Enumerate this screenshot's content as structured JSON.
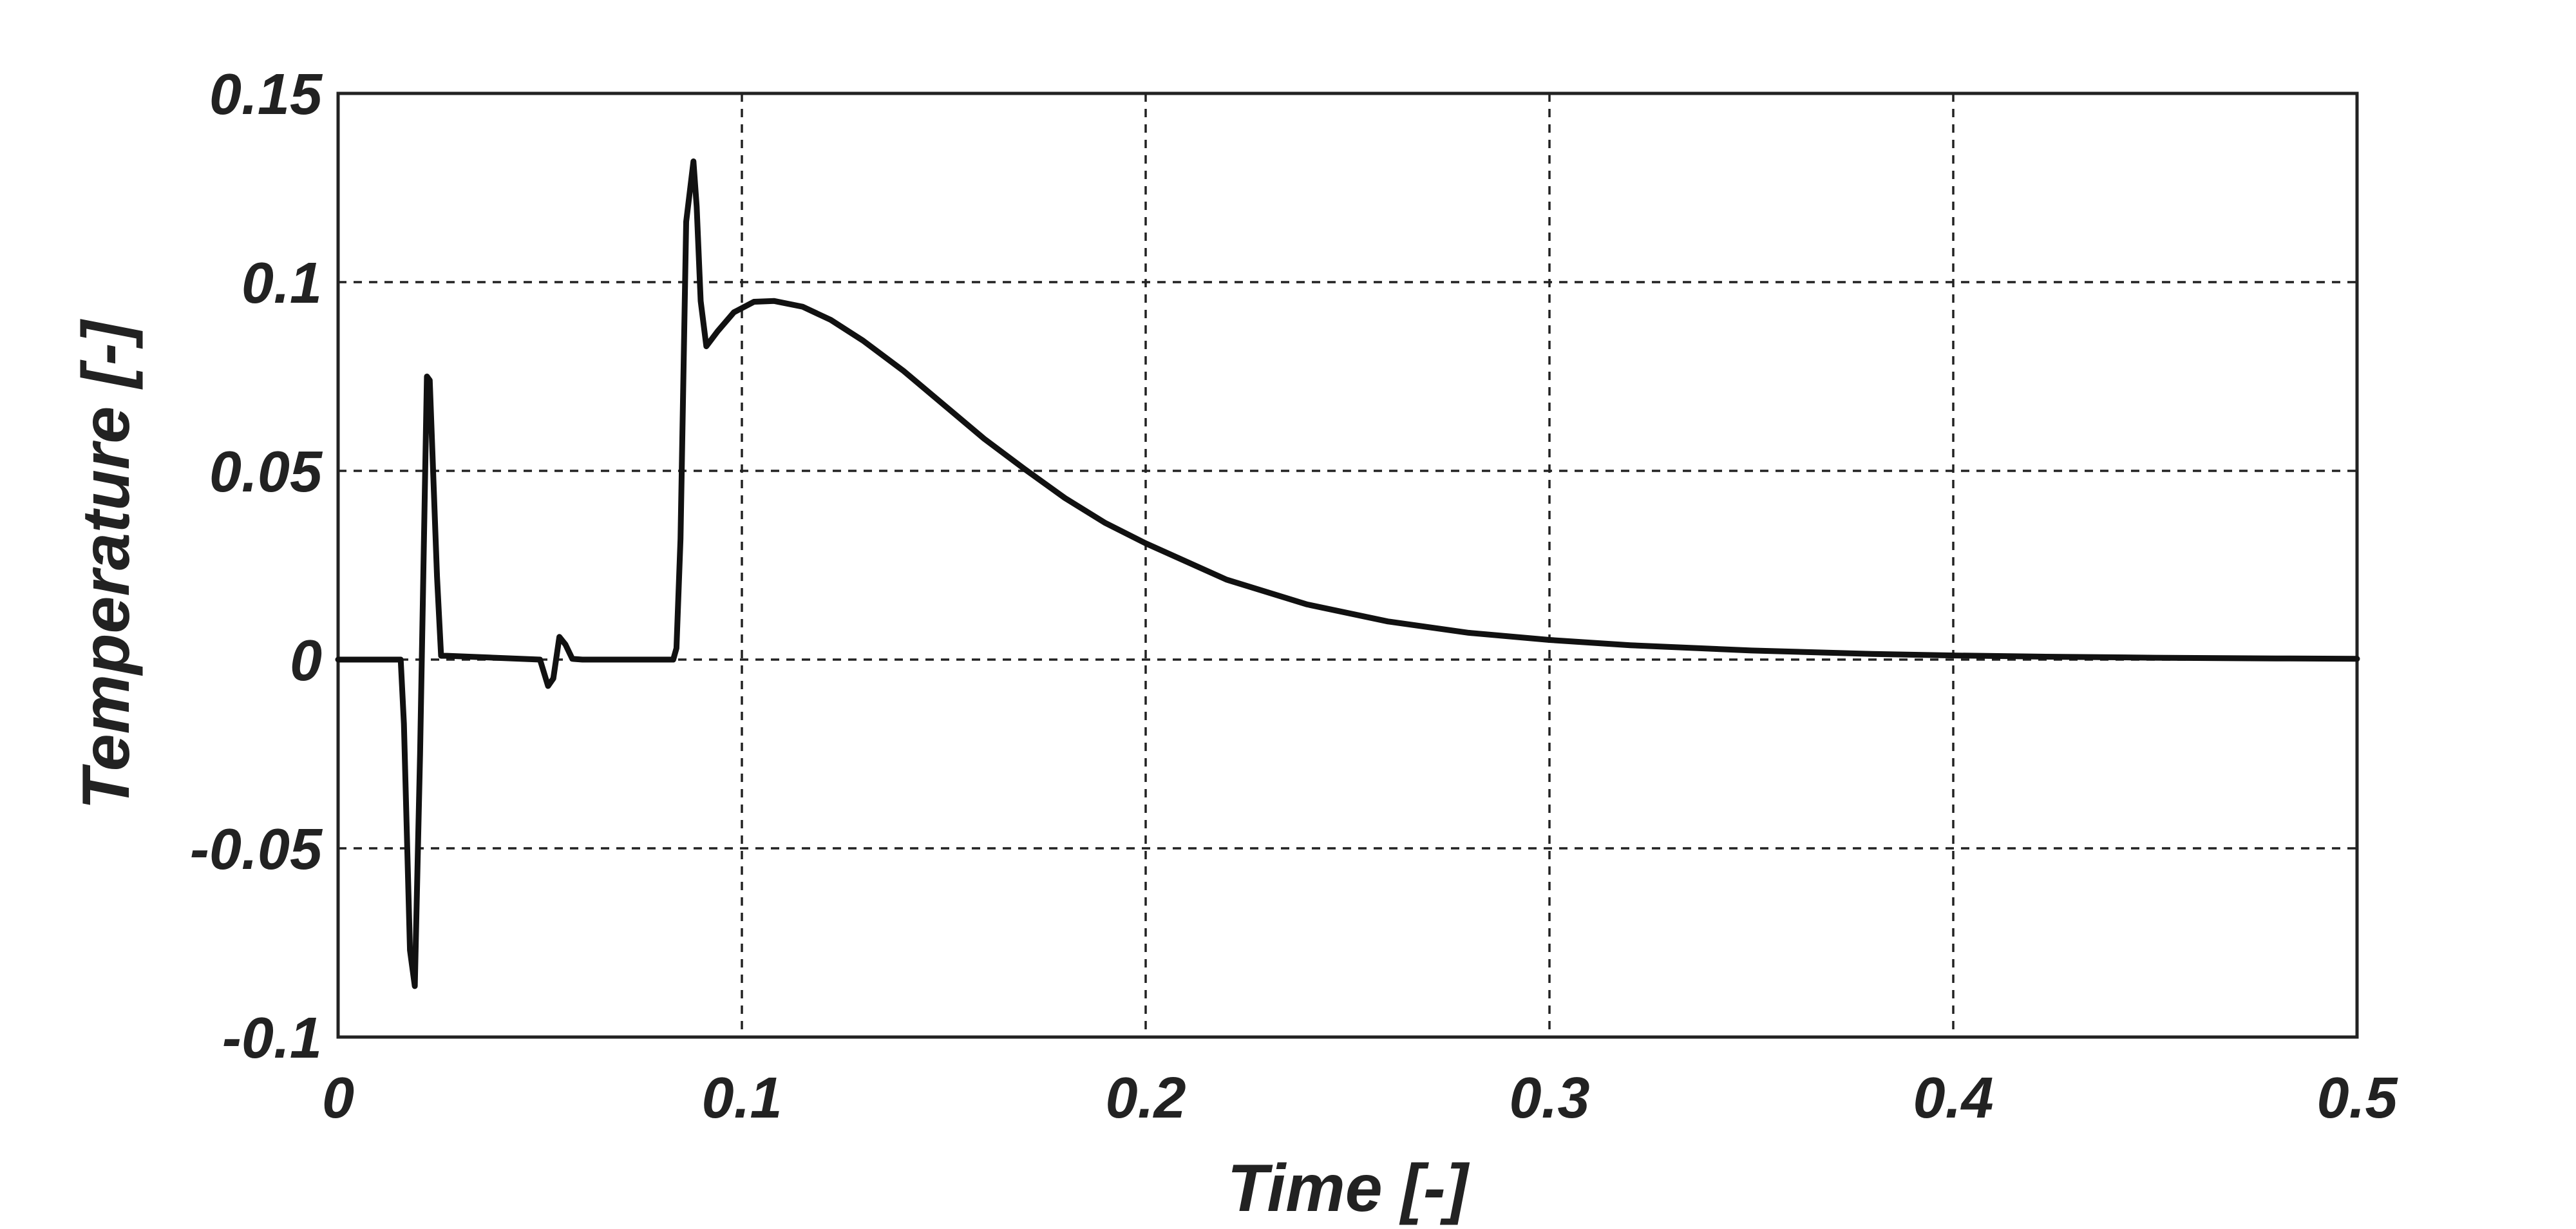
{
  "chart_data": {
    "type": "line",
    "title": "",
    "xlabel": "Time [-]",
    "ylabel": "Temperature [-]",
    "xlim": [
      0,
      0.5
    ],
    "ylim": [
      -0.1,
      0.15
    ],
    "x_ticks": [
      0,
      0.1,
      0.2,
      0.3,
      0.4,
      0.5
    ],
    "x_tick_labels": [
      "0",
      "0.1",
      "0.2",
      "0.3",
      "0.4",
      "0.5"
    ],
    "y_ticks": [
      -0.1,
      -0.05,
      0,
      0.05,
      0.1,
      0.15
    ],
    "y_tick_labels": [
      "-0.1",
      "-0.05",
      "0",
      "0.05",
      "0.1",
      "0.15"
    ],
    "grid": true,
    "grid_style": "dashed",
    "line_color": "#111111",
    "series": [
      {
        "x": [
          0,
          0.0155,
          0.0163,
          0.0178,
          0.019,
          0.0203,
          0.022,
          0.0227,
          0.0245,
          0.0255,
          0.027,
          0.05,
          0.052,
          0.0533,
          0.0548,
          0.0563,
          0.058,
          0.0605,
          0.083,
          0.0838,
          0.0848,
          0.0862,
          0.088,
          0.0888,
          0.0898,
          0.0912,
          0.094,
          0.098,
          0.103,
          0.108,
          0.115,
          0.122,
          0.13,
          0.14,
          0.15,
          0.16,
          0.17,
          0.18,
          0.19,
          0.2,
          0.22,
          0.24,
          0.26,
          0.28,
          0.3,
          0.32,
          0.35,
          0.38,
          0.4,
          0.42,
          0.45,
          0.48,
          0.5
        ],
        "y": [
          0,
          0,
          -0.017,
          -0.077,
          -0.0865,
          -0.025,
          0.075,
          0.074,
          0.022,
          0.001,
          0.001,
          0,
          -0.007,
          -0.005,
          0.006,
          0.004,
          0.0002,
          0,
          0,
          0.003,
          0.032,
          0.116,
          0.132,
          0.12,
          0.095,
          0.083,
          0.087,
          0.092,
          0.0948,
          0.095,
          0.0935,
          0.09,
          0.0845,
          0.0765,
          0.0675,
          0.0585,
          0.0505,
          0.0428,
          0.0362,
          0.0308,
          0.0212,
          0.0146,
          0.0101,
          0.0071,
          0.0052,
          0.0038,
          0.0024,
          0.0015,
          0.0011,
          0.0008,
          0.0005,
          0.0003,
          0.0002
        ]
      }
    ]
  }
}
